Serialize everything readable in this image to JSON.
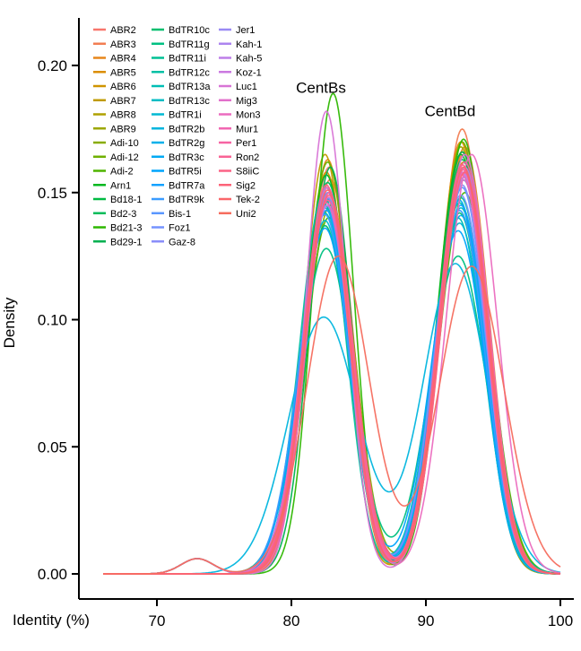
{
  "chart_data": {
    "type": "line",
    "title": "",
    "xlabel": "Identity (%)",
    "ylabel": "Density",
    "xlim": [
      65,
      100
    ],
    "ylim": [
      0,
      0.21
    ],
    "xticks": [
      70,
      80,
      90,
      100
    ],
    "yticks": [
      0.0,
      0.05,
      0.1,
      0.15,
      0.2
    ],
    "ytick_labels": [
      "0.00",
      "0.05",
      "0.10",
      "0.15",
      "0.20"
    ],
    "annotations": [
      {
        "text": "CentBs",
        "x": 83.0,
        "y": 0.19
      },
      {
        "text": "CentBd",
        "x": 92.6,
        "y": 0.18
      }
    ],
    "legend_columns": 3,
    "legend_position": "top-left",
    "series": [
      {
        "name": "ABR2",
        "color": "#F8766D",
        "peak1": [
          82.8,
          0.16,
          1.7
        ],
        "peak2": [
          92.8,
          0.165,
          1.8
        ]
      },
      {
        "name": "ABR3",
        "color": "#F27D52",
        "peak1": [
          82.9,
          0.155,
          1.7
        ],
        "peak2": [
          92.7,
          0.175,
          1.7
        ]
      },
      {
        "name": "ABR4",
        "color": "#E7861B",
        "peak1": [
          82.7,
          0.163,
          1.6
        ],
        "peak2": [
          92.9,
          0.168,
          1.8
        ]
      },
      {
        "name": "ABR5",
        "color": "#DB8E00",
        "peak1": [
          82.6,
          0.158,
          1.7
        ],
        "peak2": [
          92.6,
          0.17,
          1.7
        ]
      },
      {
        "name": "ABR6",
        "color": "#CF9400",
        "peak1": [
          82.8,
          0.15,
          1.8
        ],
        "peak2": [
          92.8,
          0.162,
          1.8
        ]
      },
      {
        "name": "ABR7",
        "color": "#C09B00",
        "peak1": [
          82.5,
          0.165,
          1.6
        ],
        "peak2": [
          92.7,
          0.166,
          1.8
        ]
      },
      {
        "name": "ABR8",
        "color": "#AFA100",
        "peak1": [
          82.7,
          0.148,
          1.8
        ],
        "peak2": [
          92.9,
          0.16,
          1.8
        ]
      },
      {
        "name": "ABR9",
        "color": "#9CA700",
        "peak1": [
          82.6,
          0.152,
          1.7
        ],
        "peak2": [
          92.6,
          0.168,
          1.7
        ]
      },
      {
        "name": "Adi-10",
        "color": "#88AC00",
        "peak1": [
          82.9,
          0.145,
          1.8
        ],
        "peak2": [
          92.8,
          0.158,
          1.9
        ]
      },
      {
        "name": "Adi-12",
        "color": "#6FB000",
        "peak1": [
          82.7,
          0.162,
          1.7
        ],
        "peak2": [
          92.7,
          0.17,
          1.7
        ]
      },
      {
        "name": "Adi-2",
        "color": "#4FB400",
        "peak1": [
          82.8,
          0.14,
          1.8
        ],
        "peak2": [
          92.9,
          0.15,
          1.9
        ]
      },
      {
        "name": "Arn1",
        "color": "#00B81F",
        "peak1": [
          82.6,
          0.157,
          1.7
        ],
        "peak2": [
          92.6,
          0.165,
          1.8
        ]
      },
      {
        "name": "Bd18-1",
        "color": "#00BA42",
        "peak1": [
          82.8,
          0.147,
          1.8
        ],
        "peak2": [
          92.8,
          0.155,
          1.8
        ]
      },
      {
        "name": "Bd2-3",
        "color": "#00BC5A",
        "peak1": [
          82.7,
          0.154,
          1.7
        ],
        "peak2": [
          92.7,
          0.163,
          1.8
        ]
      },
      {
        "name": "Bd21-3",
        "color": "#2DB700",
        "peak1": [
          83.1,
          0.189,
          1.5
        ],
        "peak2": [
          92.8,
          0.171,
          1.7
        ]
      },
      {
        "name": "Bd29-1",
        "color": "#00B050",
        "peak1": [
          82.9,
          0.16,
          1.6
        ],
        "peak2": [
          92.7,
          0.166,
          1.8
        ]
      },
      {
        "name": "BdTR10c",
        "color": "#00BE6F",
        "peak1": [
          82.5,
          0.137,
          1.8
        ],
        "peak2": [
          92.5,
          0.142,
          1.9
        ]
      },
      {
        "name": "BdTR11g",
        "color": "#00C082",
        "peak1": [
          82.6,
          0.128,
          2.0
        ],
        "peak2": [
          92.4,
          0.125,
          2.1
        ]
      },
      {
        "name": "BdTR11i",
        "color": "#00C094",
        "peak1": [
          82.5,
          0.145,
          1.8
        ],
        "peak2": [
          92.6,
          0.148,
          1.9
        ]
      },
      {
        "name": "BdTR12c",
        "color": "#00C0A5",
        "peak1": [
          82.4,
          0.149,
          1.7
        ],
        "peak2": [
          92.5,
          0.146,
          1.8
        ]
      },
      {
        "name": "BdTR13a",
        "color": "#00BEB5",
        "peak1": [
          82.5,
          0.142,
          1.8
        ],
        "peak2": [
          92.4,
          0.14,
          1.9
        ]
      },
      {
        "name": "BdTR13c",
        "color": "#00BCC4",
        "peak1": [
          82.6,
          0.146,
          1.8
        ],
        "peak2": [
          92.6,
          0.144,
          1.9
        ]
      },
      {
        "name": "BdTR1i",
        "color": "#00B9D2",
        "peak1": [
          82.5,
          0.139,
          1.8
        ],
        "peak2": [
          92.5,
          0.138,
          1.9
        ]
      },
      {
        "name": "BdTR2b",
        "color": "#00B5DE",
        "peak1": [
          82.4,
          0.101,
          2.6
        ],
        "peak2": [
          92.2,
          0.122,
          2.4
        ]
      },
      {
        "name": "BdTR2g",
        "color": "#00B0EA",
        "peak1": [
          82.5,
          0.144,
          1.8
        ],
        "peak2": [
          92.6,
          0.141,
          1.9
        ]
      },
      {
        "name": "BdTR3c",
        "color": "#00AAF4",
        "peak1": [
          82.6,
          0.148,
          1.8
        ],
        "peak2": [
          92.5,
          0.147,
          1.8
        ]
      },
      {
        "name": "BdTR5i",
        "color": "#00A4FC",
        "peak1": [
          82.5,
          0.136,
          1.9
        ],
        "peak2": [
          92.4,
          0.135,
          2.0
        ]
      },
      {
        "name": "BdTR7a",
        "color": "#14A2FF",
        "peak1": [
          82.6,
          0.143,
          1.8
        ],
        "peak2": [
          92.6,
          0.145,
          1.9
        ]
      },
      {
        "name": "BdTR9k",
        "color": "#3A9CFF",
        "peak1": [
          82.5,
          0.141,
          1.8
        ],
        "peak2": [
          92.5,
          0.143,
          1.9
        ]
      },
      {
        "name": "Bis-1",
        "color": "#5A97FF",
        "peak1": [
          82.7,
          0.15,
          1.7
        ],
        "peak2": [
          92.7,
          0.152,
          1.8
        ]
      },
      {
        "name": "Foz1",
        "color": "#7493FF",
        "peak1": [
          82.6,
          0.145,
          1.8
        ],
        "peak2": [
          92.6,
          0.149,
          1.9
        ]
      },
      {
        "name": "Gaz-8",
        "color": "#8A8EF9",
        "peak1": [
          82.7,
          0.148,
          1.8
        ],
        "peak2": [
          92.7,
          0.153,
          1.8
        ]
      },
      {
        "name": "Jer1",
        "color": "#9A8AF4",
        "peak1": [
          82.6,
          0.152,
          1.7
        ],
        "peak2": [
          92.8,
          0.156,
          1.8
        ]
      },
      {
        "name": "Kah-1",
        "color": "#AC84EF",
        "peak1": [
          82.7,
          0.147,
          1.8
        ],
        "peak2": [
          92.7,
          0.158,
          1.8
        ]
      },
      {
        "name": "Kah-5",
        "color": "#BD7EE8",
        "peak1": [
          82.8,
          0.15,
          1.7
        ],
        "peak2": [
          92.9,
          0.16,
          1.8
        ]
      },
      {
        "name": "Koz-1",
        "color": "#CB79E0",
        "peak1": [
          82.7,
          0.145,
          1.8
        ],
        "peak2": [
          92.8,
          0.155,
          1.8
        ]
      },
      {
        "name": "Luc1",
        "color": "#D874D6",
        "peak1": [
          82.6,
          0.182,
          1.5
        ],
        "peak2": [
          92.9,
          0.165,
          1.8
        ]
      },
      {
        "name": "Mig3",
        "color": "#E270CB",
        "peak1": [
          82.8,
          0.148,
          1.8
        ],
        "peak2": [
          92.8,
          0.158,
          1.8
        ]
      },
      {
        "name": "Mon3",
        "color": "#EB6BBF",
        "peak1": [
          82.7,
          0.152,
          1.7
        ],
        "peak2": [
          93.4,
          0.165,
          1.9
        ]
      },
      {
        "name": "Mur1",
        "color": "#F166B1",
        "peak1": [
          82.6,
          0.146,
          1.8
        ],
        "peak2": [
          92.7,
          0.157,
          1.8
        ]
      },
      {
        "name": "Per1",
        "color": "#F664A3",
        "peak1": [
          82.8,
          0.15,
          1.7
        ],
        "peak2": [
          92.9,
          0.162,
          1.8
        ]
      },
      {
        "name": "Ron2",
        "color": "#F96395",
        "peak1": [
          82.7,
          0.147,
          1.8
        ],
        "peak2": [
          92.8,
          0.159,
          1.8
        ]
      },
      {
        "name": "S8iiC",
        "color": "#FB6286",
        "peak1": [
          82.6,
          0.153,
          1.7
        ],
        "peak2": [
          92.7,
          0.161,
          1.8
        ]
      },
      {
        "name": "Sig2",
        "color": "#FC6378",
        "peak1": [
          82.8,
          0.149,
          1.8
        ],
        "peak2": [
          92.9,
          0.158,
          1.8
        ]
      },
      {
        "name": "Tek-2",
        "color": "#FA666A",
        "peak1": [
          82.7,
          0.151,
          1.7
        ],
        "peak2": [
          92.8,
          0.16,
          1.8
        ]
      },
      {
        "name": "Uni2",
        "color": "#F66D5E",
        "peak1": [
          83.5,
          0.125,
          2.3
        ],
        "peak2": [
          93.4,
          0.121,
          2.4
        ]
      }
    ]
  }
}
